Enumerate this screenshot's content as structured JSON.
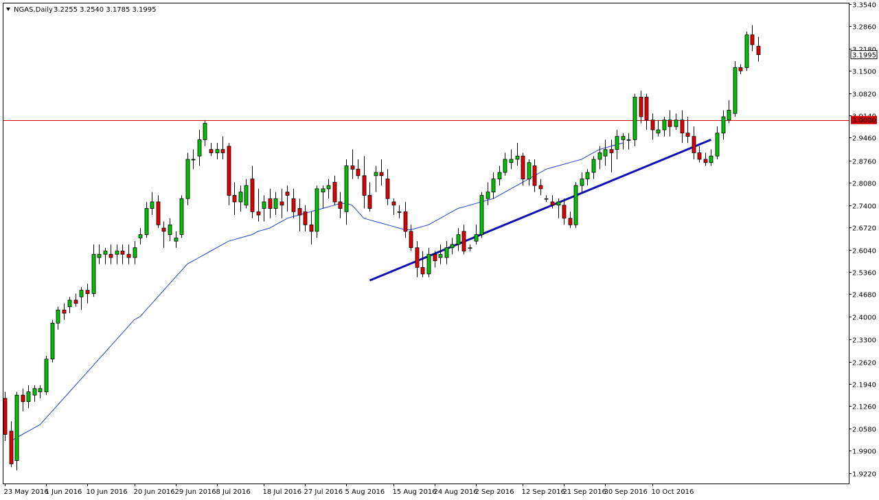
{
  "header": {
    "symbol_timeframe": "NGAS,Daily",
    "ohlc_values": "3.2255 3.2540 3.1785 3.1995"
  },
  "colors": {
    "bull": "#00c000",
    "bear": "#e00000",
    "wick": "#000000",
    "ma": "#1f3fd8",
    "trendline": "#1010b0",
    "level_line": "#d40000",
    "level_tag_bg": "#d40000",
    "price_tag_bg": "#000000"
  },
  "price_tags": {
    "current": "3.1995",
    "level": "3.0000"
  },
  "chart_data": {
    "type": "candlestick",
    "ylim": [
      1.89,
      3.356
    ],
    "y_ticks": [
      "3.3540",
      "3.2860",
      "3.2180",
      "3.1500",
      "3.0820",
      "3.0140",
      "2.9460",
      "2.8760",
      "2.8080",
      "2.7400",
      "2.6720",
      "2.6040",
      "2.5360",
      "2.4680",
      "2.4000",
      "2.3300",
      "2.2620",
      "2.1940",
      "2.1260",
      "2.0580",
      "1.9900",
      "1.9220"
    ],
    "x_labels": [
      {
        "text": "23 May 2016",
        "index": 0
      },
      {
        "text": "1 Jun 2016",
        "index": 7
      },
      {
        "text": "10 Jun 2016",
        "index": 14
      },
      {
        "text": "20 Jun 2016",
        "index": 22
      },
      {
        "text": "29 Jun 2016",
        "index": 29
      },
      {
        "text": "8 Jul 2016",
        "index": 36
      },
      {
        "text": "18 Jul 2016",
        "index": 44
      },
      {
        "text": "27 Jul 2016",
        "index": 51
      },
      {
        "text": "5 Aug 2016",
        "index": 58
      },
      {
        "text": "15 Aug 2016",
        "index": 66
      },
      {
        "text": "24 Aug 2016",
        "index": 73
      },
      {
        "text": "2 Sep 2016",
        "index": 80
      },
      {
        "text": "12 Sep 2016",
        "index": 88
      },
      {
        "text": "21 Sep 2016",
        "index": 95
      },
      {
        "text": "30 Sep 2016",
        "index": 102
      },
      {
        "text": "10 Oct 2016",
        "index": 110
      }
    ],
    "horizontal_level": 3.0,
    "trendline": {
      "start": [
        62,
        2.51
      ],
      "end": [
        120,
        2.94
      ]
    },
    "moving_average": [
      2.02,
      2.03,
      2.04,
      2.05,
      2.06,
      2.07,
      2.09,
      2.11,
      2.13,
      2.15,
      2.17,
      2.19,
      2.21,
      2.23,
      2.25,
      2.27,
      2.29,
      2.31,
      2.33,
      2.35,
      2.37,
      2.39,
      2.4,
      2.42,
      2.44,
      2.46,
      2.48,
      2.5,
      2.52,
      2.54,
      2.56,
      2.57,
      2.58,
      2.59,
      2.6,
      2.61,
      2.62,
      2.63,
      2.635,
      2.64,
      2.645,
      2.65,
      2.66,
      2.665,
      2.67,
      2.68,
      2.69,
      2.7,
      2.705,
      2.71,
      2.715,
      2.72,
      2.725,
      2.73,
      2.735,
      2.74,
      2.745,
      2.745,
      2.74,
      2.72,
      2.7,
      2.695,
      2.69,
      2.685,
      2.68,
      2.675,
      2.67,
      2.665,
      2.665,
      2.67,
      2.675,
      2.68,
      2.69,
      2.7,
      2.71,
      2.72,
      2.73,
      2.735,
      2.74,
      2.745,
      2.75,
      2.755,
      2.76,
      2.77,
      2.78,
      2.79,
      2.8,
      2.81,
      2.82,
      2.83,
      2.84,
      2.85,
      2.855,
      2.86,
      2.865,
      2.87,
      2.875,
      2.88,
      2.89,
      2.9,
      2.91,
      2.915,
      2.92,
      2.925,
      2.93
    ],
    "ma_offset": 1,
    "candles": [
      {
        "o": 2.15,
        "h": 2.17,
        "l": 2.02,
        "c": 2.04
      },
      {
        "o": 2.05,
        "h": 2.08,
        "l": 1.94,
        "c": 1.95
      },
      {
        "o": 1.96,
        "h": 2.17,
        "l": 1.93,
        "c": 2.16
      },
      {
        "o": 2.16,
        "h": 2.18,
        "l": 2.11,
        "c": 2.14
      },
      {
        "o": 2.14,
        "h": 2.19,
        "l": 2.12,
        "c": 2.17
      },
      {
        "o": 2.16,
        "h": 2.19,
        "l": 2.14,
        "c": 2.18
      },
      {
        "o": 2.17,
        "h": 2.19,
        "l": 2.15,
        "c": 2.18
      },
      {
        "o": 2.17,
        "h": 2.28,
        "l": 2.16,
        "c": 2.27
      },
      {
        "o": 2.27,
        "h": 2.39,
        "l": 2.26,
        "c": 2.38
      },
      {
        "o": 2.38,
        "h": 2.43,
        "l": 2.36,
        "c": 2.42
      },
      {
        "o": 2.42,
        "h": 2.44,
        "l": 2.39,
        "c": 2.41
      },
      {
        "o": 2.43,
        "h": 2.46,
        "l": 2.41,
        "c": 2.45
      },
      {
        "o": 2.45,
        "h": 2.47,
        "l": 2.43,
        "c": 2.44
      },
      {
        "o": 2.46,
        "h": 2.49,
        "l": 2.42,
        "c": 2.48
      },
      {
        "o": 2.48,
        "h": 2.5,
        "l": 2.44,
        "c": 2.47
      },
      {
        "o": 2.47,
        "h": 2.62,
        "l": 2.46,
        "c": 2.59
      },
      {
        "o": 2.58,
        "h": 2.62,
        "l": 2.56,
        "c": 2.59
      },
      {
        "o": 2.59,
        "h": 2.61,
        "l": 2.56,
        "c": 2.6
      },
      {
        "o": 2.59,
        "h": 2.62,
        "l": 2.56,
        "c": 2.58
      },
      {
        "o": 2.59,
        "h": 2.62,
        "l": 2.56,
        "c": 2.6
      },
      {
        "o": 2.6,
        "h": 2.62,
        "l": 2.56,
        "c": 2.59
      },
      {
        "o": 2.59,
        "h": 2.62,
        "l": 2.56,
        "c": 2.58
      },
      {
        "o": 2.58,
        "h": 2.63,
        "l": 2.56,
        "c": 2.61
      },
      {
        "o": 2.64,
        "h": 2.67,
        "l": 2.62,
        "c": 2.65
      },
      {
        "o": 2.65,
        "h": 2.75,
        "l": 2.64,
        "c": 2.73
      },
      {
        "o": 2.73,
        "h": 2.78,
        "l": 2.71,
        "c": 2.75
      },
      {
        "o": 2.75,
        "h": 2.77,
        "l": 2.67,
        "c": 2.68
      },
      {
        "o": 2.67,
        "h": 2.69,
        "l": 2.61,
        "c": 2.66
      },
      {
        "o": 2.65,
        "h": 2.7,
        "l": 2.63,
        "c": 2.68
      },
      {
        "o": 2.63,
        "h": 2.66,
        "l": 2.61,
        "c": 2.64
      },
      {
        "o": 2.65,
        "h": 2.77,
        "l": 2.64,
        "c": 2.76
      },
      {
        "o": 2.76,
        "h": 2.9,
        "l": 2.74,
        "c": 2.88
      },
      {
        "o": 2.88,
        "h": 2.91,
        "l": 2.85,
        "c": 2.88
      },
      {
        "o": 2.89,
        "h": 2.97,
        "l": 2.86,
        "c": 2.94
      },
      {
        "o": 2.94,
        "h": 3.0,
        "l": 2.92,
        "c": 2.99
      },
      {
        "o": 2.91,
        "h": 2.93,
        "l": 2.89,
        "c": 2.9
      },
      {
        "o": 2.9,
        "h": 2.93,
        "l": 2.88,
        "c": 2.91
      },
      {
        "o": 2.91,
        "h": 2.95,
        "l": 2.88,
        "c": 2.9
      },
      {
        "o": 2.92,
        "h": 2.93,
        "l": 2.74,
        "c": 2.77
      },
      {
        "o": 2.77,
        "h": 2.81,
        "l": 2.71,
        "c": 2.75
      },
      {
        "o": 2.75,
        "h": 2.8,
        "l": 2.72,
        "c": 2.78
      },
      {
        "o": 2.74,
        "h": 2.82,
        "l": 2.73,
        "c": 2.8
      },
      {
        "o": 2.82,
        "h": 2.86,
        "l": 2.7,
        "c": 2.72
      },
      {
        "o": 2.72,
        "h": 2.79,
        "l": 2.69,
        "c": 2.71
      },
      {
        "o": 2.73,
        "h": 2.77,
        "l": 2.69,
        "c": 2.75
      },
      {
        "o": 2.76,
        "h": 2.79,
        "l": 2.7,
        "c": 2.73
      },
      {
        "o": 2.73,
        "h": 2.78,
        "l": 2.71,
        "c": 2.76
      },
      {
        "o": 2.75,
        "h": 2.79,
        "l": 2.7,
        "c": 2.74
      },
      {
        "o": 2.78,
        "h": 2.8,
        "l": 2.72,
        "c": 2.77
      },
      {
        "o": 2.76,
        "h": 2.79,
        "l": 2.7,
        "c": 2.72
      },
      {
        "o": 2.73,
        "h": 2.76,
        "l": 2.66,
        "c": 2.71
      },
      {
        "o": 2.72,
        "h": 2.74,
        "l": 2.66,
        "c": 2.68
      },
      {
        "o": 2.68,
        "h": 2.72,
        "l": 2.62,
        "c": 2.66
      },
      {
        "o": 2.66,
        "h": 2.8,
        "l": 2.64,
        "c": 2.79
      },
      {
        "o": 2.78,
        "h": 2.8,
        "l": 2.73,
        "c": 2.79
      },
      {
        "o": 2.79,
        "h": 2.82,
        "l": 2.76,
        "c": 2.8
      },
      {
        "o": 2.81,
        "h": 2.83,
        "l": 2.74,
        "c": 2.75
      },
      {
        "o": 2.75,
        "h": 2.78,
        "l": 2.7,
        "c": 2.73
      },
      {
        "o": 2.72,
        "h": 2.88,
        "l": 2.68,
        "c": 2.86
      },
      {
        "o": 2.86,
        "h": 2.91,
        "l": 2.82,
        "c": 2.85
      },
      {
        "o": 2.85,
        "h": 2.88,
        "l": 2.82,
        "c": 2.83
      },
      {
        "o": 2.83,
        "h": 2.89,
        "l": 2.73,
        "c": 2.77
      },
      {
        "o": 2.77,
        "h": 2.81,
        "l": 2.72,
        "c": 2.73
      },
      {
        "o": 2.83,
        "h": 2.86,
        "l": 2.78,
        "c": 2.84
      },
      {
        "o": 2.84,
        "h": 2.88,
        "l": 2.8,
        "c": 2.83
      },
      {
        "o": 2.82,
        "h": 2.85,
        "l": 2.74,
        "c": 2.76
      },
      {
        "o": 2.75,
        "h": 2.76,
        "l": 2.71,
        "c": 2.74
      },
      {
        "o": 2.72,
        "h": 2.74,
        "l": 2.7,
        "c": 2.72
      },
      {
        "o": 2.72,
        "h": 2.75,
        "l": 2.64,
        "c": 2.66
      },
      {
        "o": 2.66,
        "h": 2.68,
        "l": 2.6,
        "c": 2.61
      },
      {
        "o": 2.61,
        "h": 2.63,
        "l": 2.52,
        "c": 2.55
      },
      {
        "o": 2.55,
        "h": 2.6,
        "l": 2.52,
        "c": 2.53
      },
      {
        "o": 2.53,
        "h": 2.61,
        "l": 2.52,
        "c": 2.59
      },
      {
        "o": 2.59,
        "h": 2.6,
        "l": 2.55,
        "c": 2.57
      },
      {
        "o": 2.58,
        "h": 2.62,
        "l": 2.56,
        "c": 2.59
      },
      {
        "o": 2.58,
        "h": 2.63,
        "l": 2.56,
        "c": 2.61
      },
      {
        "o": 2.61,
        "h": 2.64,
        "l": 2.59,
        "c": 2.62
      },
      {
        "o": 2.62,
        "h": 2.67,
        "l": 2.6,
        "c": 2.65
      },
      {
        "o": 2.66,
        "h": 2.68,
        "l": 2.59,
        "c": 2.6
      },
      {
        "o": 2.61,
        "h": 2.62,
        "l": 2.6,
        "c": 2.61
      },
      {
        "o": 2.63,
        "h": 2.68,
        "l": 2.62,
        "c": 2.65
      },
      {
        "o": 2.65,
        "h": 2.78,
        "l": 2.64,
        "c": 2.77
      },
      {
        "o": 2.76,
        "h": 2.81,
        "l": 2.74,
        "c": 2.78
      },
      {
        "o": 2.78,
        "h": 2.84,
        "l": 2.76,
        "c": 2.82
      },
      {
        "o": 2.82,
        "h": 2.86,
        "l": 2.8,
        "c": 2.84
      },
      {
        "o": 2.84,
        "h": 2.9,
        "l": 2.83,
        "c": 2.88
      },
      {
        "o": 2.87,
        "h": 2.91,
        "l": 2.85,
        "c": 2.88
      },
      {
        "o": 2.88,
        "h": 2.93,
        "l": 2.86,
        "c": 2.89
      },
      {
        "o": 2.89,
        "h": 2.9,
        "l": 2.8,
        "c": 2.82
      },
      {
        "o": 2.82,
        "h": 2.88,
        "l": 2.8,
        "c": 2.87
      },
      {
        "o": 2.86,
        "h": 2.88,
        "l": 2.78,
        "c": 2.8
      },
      {
        "o": 2.8,
        "h": 2.82,
        "l": 2.77,
        "c": 2.79
      },
      {
        "o": 2.76,
        "h": 2.77,
        "l": 2.75,
        "c": 2.76
      },
      {
        "o": 2.75,
        "h": 2.77,
        "l": 2.73,
        "c": 2.74
      },
      {
        "o": 2.74,
        "h": 2.76,
        "l": 2.7,
        "c": 2.75
      },
      {
        "o": 2.74,
        "h": 2.76,
        "l": 2.68,
        "c": 2.7
      },
      {
        "o": 2.7,
        "h": 2.72,
        "l": 2.67,
        "c": 2.68
      },
      {
        "o": 2.68,
        "h": 2.81,
        "l": 2.67,
        "c": 2.8
      },
      {
        "o": 2.8,
        "h": 2.84,
        "l": 2.78,
        "c": 2.82
      },
      {
        "o": 2.82,
        "h": 2.85,
        "l": 2.8,
        "c": 2.84
      },
      {
        "o": 2.84,
        "h": 2.89,
        "l": 2.82,
        "c": 2.88
      },
      {
        "o": 2.88,
        "h": 2.92,
        "l": 2.85,
        "c": 2.9
      },
      {
        "o": 2.89,
        "h": 2.94,
        "l": 2.86,
        "c": 2.91
      },
      {
        "o": 2.91,
        "h": 2.94,
        "l": 2.84,
        "c": 2.9
      },
      {
        "o": 2.91,
        "h": 2.97,
        "l": 2.88,
        "c": 2.95
      },
      {
        "o": 2.94,
        "h": 2.96,
        "l": 2.91,
        "c": 2.95
      },
      {
        "o": 2.94,
        "h": 2.96,
        "l": 2.91,
        "c": 2.94
      },
      {
        "o": 2.94,
        "h": 3.08,
        "l": 2.92,
        "c": 3.07
      },
      {
        "o": 3.07,
        "h": 3.09,
        "l": 2.99,
        "c": 3.01
      },
      {
        "o": 3.07,
        "h": 3.08,
        "l": 2.97,
        "c": 3.0
      },
      {
        "o": 3.0,
        "h": 3.02,
        "l": 2.94,
        "c": 2.97
      },
      {
        "o": 2.96,
        "h": 3.0,
        "l": 2.95,
        "c": 2.97
      },
      {
        "o": 2.97,
        "h": 3.01,
        "l": 2.95,
        "c": 3.0
      },
      {
        "o": 3.0,
        "h": 3.03,
        "l": 2.95,
        "c": 2.98
      },
      {
        "o": 2.98,
        "h": 3.02,
        "l": 2.97,
        "c": 3.0
      },
      {
        "o": 3.0,
        "h": 3.03,
        "l": 2.93,
        "c": 2.96
      },
      {
        "o": 2.96,
        "h": 3.01,
        "l": 2.93,
        "c": 2.95
      },
      {
        "o": 2.95,
        "h": 2.98,
        "l": 2.88,
        "c": 2.9
      },
      {
        "o": 2.9,
        "h": 2.92,
        "l": 2.87,
        "c": 2.88
      },
      {
        "o": 2.88,
        "h": 2.9,
        "l": 2.86,
        "c": 2.87
      },
      {
        "o": 2.87,
        "h": 2.91,
        "l": 2.86,
        "c": 2.89
      },
      {
        "o": 2.89,
        "h": 2.98,
        "l": 2.88,
        "c": 2.96
      },
      {
        "o": 2.96,
        "h": 3.03,
        "l": 2.94,
        "c": 3.01
      },
      {
        "o": 3.0,
        "h": 3.06,
        "l": 2.99,
        "c": 3.03
      },
      {
        "o": 3.02,
        "h": 3.18,
        "l": 3.01,
        "c": 3.16
      },
      {
        "o": 3.16,
        "h": 3.17,
        "l": 3.14,
        "c": 3.15
      },
      {
        "o": 3.16,
        "h": 3.27,
        "l": 3.15,
        "c": 3.26
      },
      {
        "o": 3.26,
        "h": 3.29,
        "l": 3.21,
        "c": 3.23
      },
      {
        "o": 3.2255,
        "h": 3.254,
        "l": 3.1785,
        "c": 3.1995
      }
    ]
  }
}
